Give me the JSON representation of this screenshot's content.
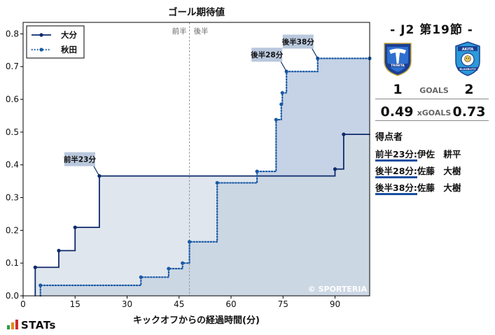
{
  "chart_data": {
    "type": "line",
    "title": "ゴール期待値",
    "xlabel": "キックオフからの経過時間(分)",
    "ylabel": "",
    "xlim": [
      0,
      100
    ],
    "ylim": [
      0,
      0.835
    ],
    "xticks": [
      0,
      15,
      30,
      45,
      60,
      75,
      90
    ],
    "yticks": [
      0.0,
      0.1,
      0.2,
      0.3,
      0.4,
      0.5,
      0.6,
      0.7,
      0.8
    ],
    "halftime_x": 48,
    "halftime_labels": [
      "前半",
      "後半"
    ],
    "watermark": "© SPORTERIA",
    "legend": "top-left",
    "series": [
      {
        "name": "大分",
        "style": "solid",
        "color": "#0d2a6b",
        "fill": "#cfd8e4",
        "points": [
          [
            3.5,
            0.087
          ],
          [
            10.3,
            0.138
          ],
          [
            15.0,
            0.209
          ],
          [
            22.0,
            0.366
          ],
          [
            90.0,
            0.387
          ],
          [
            92.5,
            0.493
          ]
        ],
        "end": 100
      },
      {
        "name": "秋田",
        "style": "dotted",
        "color": "#1a5aa6",
        "fill": "#a7bcd8",
        "points": [
          [
            5.0,
            0.032
          ],
          [
            34.0,
            0.057
          ],
          [
            42.0,
            0.083
          ],
          [
            46.0,
            0.1
          ],
          [
            48.0,
            0.165
          ],
          [
            56.0,
            0.345
          ],
          [
            67.5,
            0.38
          ],
          [
            73.0,
            0.538
          ],
          [
            74.5,
            0.585
          ],
          [
            74.8,
            0.62
          ],
          [
            76.0,
            0.685
          ],
          [
            85.0,
            0.725
          ],
          [
            100.0,
            0.725
          ]
        ],
        "end": 100
      }
    ],
    "annotations": [
      {
        "text": "前半23分",
        "x": 22.0,
        "y": 0.366,
        "series": "大分"
      },
      {
        "text": "後半28分",
        "x": 76.0,
        "y": 0.685,
        "series": "秋田"
      },
      {
        "text": "後半38分",
        "x": 85.0,
        "y": 0.725,
        "series": "秋田"
      }
    ]
  },
  "match": {
    "title": "- J2 第19節 -",
    "home_score": "1",
    "away_score": "2",
    "goals_label": "GOALS",
    "home_xg": "0.49",
    "away_xg": "0.73",
    "xg_label": "xGOALS",
    "home_crest_text": "TRINITA",
    "away_crest_text": "AKITA",
    "away_crest_sub": "BLAUBLITZ"
  },
  "scorers": {
    "title": "得点者",
    "items": [
      {
        "time": "前半23分:",
        "name": "伊佐　耕平"
      },
      {
        "time": "後半28分:",
        "name": "佐藤　大樹"
      },
      {
        "time": "後半38分:",
        "name": "佐藤　大樹"
      }
    ]
  },
  "brand": {
    "name": "STATs"
  }
}
